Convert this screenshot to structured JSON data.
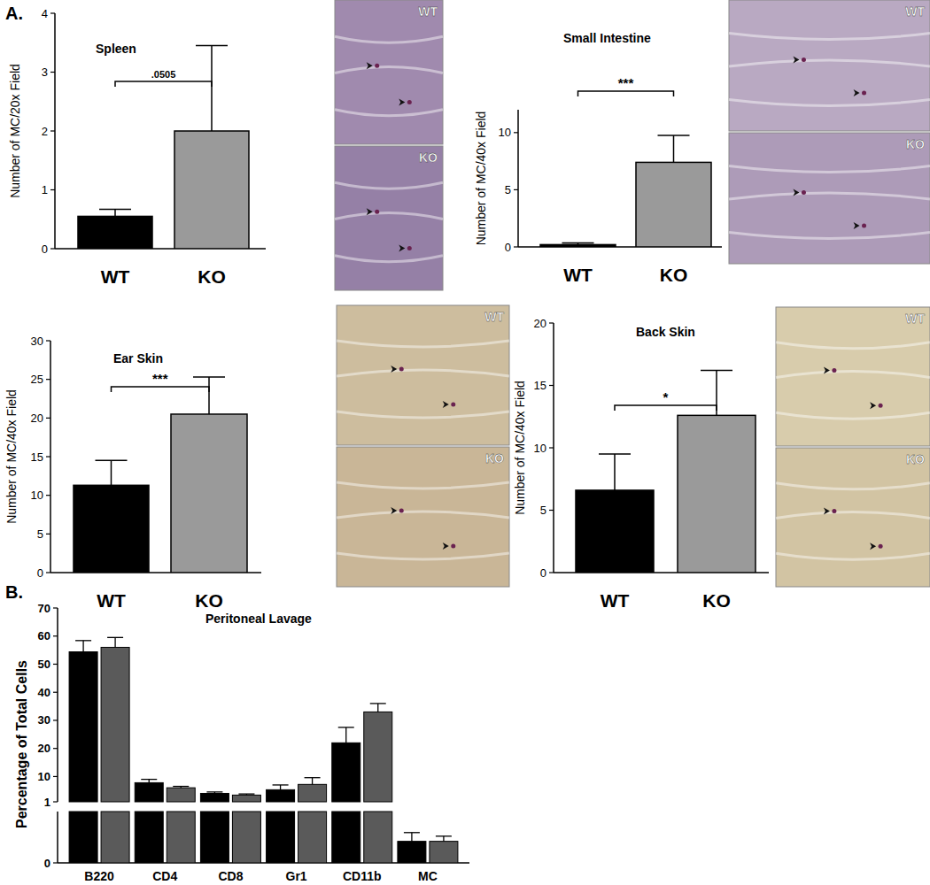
{
  "panel_labels": [
    "A.",
    "B."
  ],
  "chart_data": [
    {
      "type": "bar",
      "title": "Spleen",
      "y_label": "Number of MC/20x Field",
      "categories": [
        "WT",
        "KO"
      ],
      "values": [
        0.55,
        2.0
      ],
      "errors": [
        0.12,
        1.45
      ],
      "colors": [
        "#000000",
        "#9a9a9a"
      ],
      "ylim": [
        0,
        4
      ],
      "yticks": [
        0,
        1,
        2,
        3,
        4
      ],
      "annotation": ".0505",
      "image_labels": [
        "WT",
        "KO"
      ]
    },
    {
      "type": "bar",
      "title": "Small Intestine",
      "y_label": "Number of MC/40x Field",
      "categories": [
        "WT",
        "KO"
      ],
      "values": [
        0.2,
        7.4
      ],
      "errors": [
        0.15,
        2.35
      ],
      "colors": [
        "#000000",
        "#9a9a9a"
      ],
      "ylim": [
        0,
        12
      ],
      "yticks": [
        0,
        5,
        10
      ],
      "annotation": "***",
      "image_labels": [
        "WT",
        "KO"
      ]
    },
    {
      "type": "bar",
      "title": "Ear Skin",
      "y_label": "Number of MC/40x Field",
      "categories": [
        "WT",
        "KO"
      ],
      "values": [
        11.3,
        20.5
      ],
      "errors": [
        3.2,
        4.8
      ],
      "colors": [
        "#000000",
        "#9a9a9a"
      ],
      "ylim": [
        0,
        30
      ],
      "yticks": [
        0,
        5,
        10,
        15,
        20,
        25,
        30
      ],
      "annotation": "***",
      "image_labels": [
        "WT",
        "KO"
      ]
    },
    {
      "type": "bar",
      "title": "Back Skin",
      "y_label": "Number of MC/40x Field",
      "categories": [
        "WT",
        "KO"
      ],
      "values": [
        6.6,
        12.6
      ],
      "errors": [
        2.9,
        3.6
      ],
      "colors": [
        "#000000",
        "#9a9a9a"
      ],
      "ylim": [
        0,
        20
      ],
      "yticks": [
        0,
        5,
        10,
        15,
        20
      ],
      "annotation": "*",
      "image_labels": [
        "WT",
        "KO"
      ]
    },
    {
      "type": "bar",
      "title": "Peritoneal Lavage",
      "y_label": "Percentage of Total Cells",
      "categories": [
        "B220",
        "CD4",
        "CD8",
        "Gr1",
        "CD11b",
        "MC"
      ],
      "series": [
        {
          "color": "#000000",
          "values": [
            54.4,
            7.8,
            4.0,
            5.3,
            22.0,
            0.42
          ],
          "errors": [
            4.0,
            1.2,
            0.5,
            1.7,
            5.5,
            0.17
          ]
        },
        {
          "color": "#5a5a5a",
          "values": [
            56.0,
            6.0,
            3.4,
            7.2,
            33.0,
            0.42
          ],
          "errors": [
            3.5,
            0.5,
            0.4,
            2.4,
            3.0,
            0.1
          ]
        }
      ],
      "ylim": [
        0,
        70
      ],
      "y_break": 1,
      "yticks": [
        0,
        1,
        10,
        20,
        30,
        40,
        50,
        60,
        70
      ]
    }
  ]
}
